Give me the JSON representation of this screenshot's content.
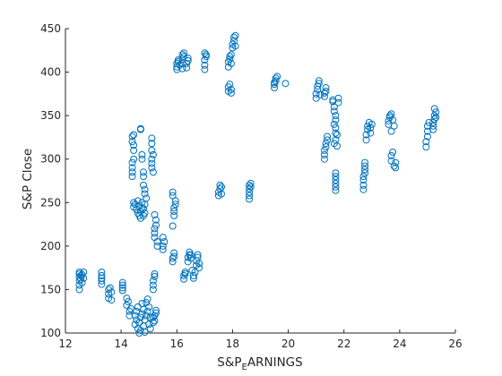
{
  "chart_data": {
    "type": "scatter",
    "title": "",
    "xlabel_main": "S&P",
    "xlabel_sub": "E",
    "xlabel_tail": "ARNINGS",
    "ylabel": "S&P Close",
    "xlim": [
      12,
      26
    ],
    "ylim": [
      100,
      450
    ],
    "xticks": [
      12,
      14,
      16,
      18,
      20,
      22,
      24,
      26
    ],
    "yticks": [
      100,
      150,
      200,
      250,
      300,
      350,
      400,
      450
    ],
    "grid": false,
    "marker": "circle-open",
    "color": "#0072BD",
    "series": [
      {
        "name": "",
        "points": [
          [
            12.5,
            150
          ],
          [
            12.5,
            155
          ],
          [
            12.5,
            160
          ],
          [
            12.5,
            164
          ],
          [
            12.5,
            168
          ],
          [
            12.5,
            170
          ],
          [
            12.55,
            162
          ],
          [
            12.55,
            166
          ],
          [
            12.6,
            158
          ],
          [
            12.6,
            167
          ],
          [
            12.65,
            163
          ],
          [
            12.65,
            170
          ],
          [
            13.3,
            160
          ],
          [
            13.3,
            163
          ],
          [
            13.3,
            166
          ],
          [
            13.3,
            170
          ],
          [
            13.3,
            156
          ],
          [
            13.55,
            140
          ],
          [
            13.55,
            145
          ],
          [
            13.55,
            150
          ],
          [
            13.6,
            152
          ],
          [
            13.65,
            138
          ],
          [
            13.65,
            147
          ],
          [
            14.05,
            152
          ],
          [
            14.05,
            155
          ],
          [
            14.05,
            158
          ],
          [
            14.05,
            149
          ],
          [
            14.2,
            140
          ],
          [
            14.2,
            132
          ],
          [
            14.25,
            136
          ],
          [
            14.3,
            125
          ],
          [
            14.35,
            128
          ],
          [
            14.3,
            120
          ],
          [
            14.5,
            110
          ],
          [
            14.5,
            120
          ],
          [
            14.55,
            115
          ],
          [
            14.55,
            125
          ],
          [
            14.6,
            105
          ],
          [
            14.6,
            130
          ],
          [
            14.65,
            100
          ],
          [
            14.65,
            112
          ],
          [
            14.7,
            103
          ],
          [
            14.7,
            118
          ],
          [
            14.75,
            122
          ],
          [
            14.75,
            134
          ],
          [
            14.8,
            108
          ],
          [
            14.8,
            127
          ],
          [
            14.85,
            101
          ],
          [
            14.85,
            115
          ],
          [
            14.9,
            120
          ],
          [
            14.9,
            135
          ],
          [
            14.95,
            125
          ],
          [
            14.95,
            139
          ],
          [
            15.0,
            110
          ],
          [
            15.0,
            130
          ],
          [
            15.05,
            105
          ],
          [
            15.05,
            118
          ],
          [
            15.15,
            112
          ],
          [
            15.15,
            118
          ],
          [
            15.2,
            114
          ],
          [
            15.2,
            120
          ],
          [
            15.25,
            123
          ],
          [
            15.25,
            126
          ],
          [
            15.15,
            150
          ],
          [
            15.15,
            155
          ],
          [
            15.15,
            160
          ],
          [
            15.2,
            165
          ],
          [
            15.2,
            168
          ],
          [
            14.45,
            245
          ],
          [
            14.45,
            250
          ],
          [
            14.5,
            248
          ],
          [
            14.55,
            242
          ],
          [
            14.6,
            238
          ],
          [
            14.6,
            252
          ],
          [
            14.65,
            235
          ],
          [
            14.65,
            246
          ],
          [
            14.7,
            232
          ],
          [
            14.7,
            240
          ],
          [
            14.75,
            244
          ],
          [
            14.75,
            250
          ],
          [
            14.8,
            235
          ],
          [
            14.8,
            243
          ],
          [
            14.85,
            238
          ],
          [
            14.85,
            248
          ],
          [
            14.4,
            280
          ],
          [
            14.4,
            285
          ],
          [
            14.4,
            290
          ],
          [
            14.4,
            296
          ],
          [
            14.45,
            300
          ],
          [
            14.45,
            310
          ],
          [
            14.45,
            316
          ],
          [
            14.4,
            320
          ],
          [
            14.4,
            326
          ],
          [
            14.45,
            328
          ],
          [
            14.7,
            334
          ],
          [
            14.7,
            335
          ],
          [
            14.75,
            300
          ],
          [
            14.75,
            305
          ],
          [
            14.8,
            280
          ],
          [
            14.8,
            285
          ],
          [
            14.8,
            270
          ],
          [
            14.85,
            265
          ],
          [
            14.85,
            260
          ],
          [
            14.9,
            255
          ],
          [
            15.1,
            290
          ],
          [
            15.1,
            295
          ],
          [
            15.1,
            300
          ],
          [
            15.15,
            305
          ],
          [
            15.1,
            310
          ],
          [
            15.1,
            318
          ],
          [
            15.1,
            324
          ],
          [
            15.15,
            285
          ],
          [
            15.2,
            210
          ],
          [
            15.2,
            215
          ],
          [
            15.2,
            220
          ],
          [
            15.25,
            224
          ],
          [
            15.25,
            230
          ],
          [
            15.2,
            236
          ],
          [
            15.3,
            205
          ],
          [
            15.3,
            200
          ],
          [
            15.5,
            196
          ],
          [
            15.5,
            200
          ],
          [
            15.55,
            205
          ],
          [
            15.5,
            210
          ],
          [
            15.85,
            182
          ],
          [
            15.85,
            186
          ],
          [
            15.9,
            188
          ],
          [
            15.9,
            192
          ],
          [
            15.85,
            223
          ],
          [
            15.9,
            235
          ],
          [
            15.9,
            240
          ],
          [
            15.9,
            244
          ],
          [
            15.95,
            248
          ],
          [
            15.95,
            252
          ],
          [
            15.85,
            258
          ],
          [
            15.85,
            262
          ],
          [
            16.25,
            162
          ],
          [
            16.25,
            166
          ],
          [
            16.3,
            168
          ],
          [
            16.3,
            170
          ],
          [
            16.4,
            182
          ],
          [
            16.4,
            187
          ],
          [
            16.45,
            190
          ],
          [
            16.45,
            193
          ],
          [
            16.5,
            190
          ],
          [
            16.5,
            186
          ],
          [
            16.6,
            163
          ],
          [
            16.6,
            166
          ],
          [
            16.65,
            170
          ],
          [
            16.55,
            172
          ],
          [
            16.7,
            178
          ],
          [
            16.7,
            183
          ],
          [
            16.75,
            187
          ],
          [
            16.75,
            190
          ],
          [
            16.8,
            180
          ],
          [
            16.8,
            175
          ],
          [
            16.0,
            403
          ],
          [
            16.0,
            406
          ],
          [
            16.0,
            410
          ],
          [
            16.05,
            412
          ],
          [
            16.05,
            414
          ],
          [
            16.1,
            408
          ],
          [
            16.2,
            404
          ],
          [
            16.2,
            410
          ],
          [
            16.2,
            415
          ],
          [
            16.2,
            420
          ],
          [
            16.25,
            422
          ],
          [
            16.25,
            418
          ],
          [
            16.35,
            405
          ],
          [
            16.35,
            410
          ],
          [
            16.4,
            413
          ],
          [
            16.4,
            416
          ],
          [
            17.0,
            403
          ],
          [
            17.0,
            408
          ],
          [
            17.0,
            414
          ],
          [
            17.05,
            418
          ],
          [
            17.05,
            420
          ],
          [
            17.0,
            422
          ],
          [
            17.5,
            258
          ],
          [
            17.5,
            262
          ],
          [
            17.55,
            266
          ],
          [
            17.55,
            270
          ],
          [
            17.6,
            268
          ],
          [
            17.6,
            260
          ],
          [
            17.85,
            378
          ],
          [
            17.85,
            383
          ],
          [
            17.9,
            386
          ],
          [
            17.95,
            376
          ],
          [
            17.95,
            380
          ],
          [
            17.85,
            406
          ],
          [
            17.85,
            412
          ],
          [
            17.9,
            415
          ],
          [
            17.9,
            418
          ],
          [
            17.95,
            420
          ],
          [
            17.95,
            410
          ],
          [
            18.0,
            428
          ],
          [
            18.0,
            432
          ],
          [
            18.05,
            436
          ],
          [
            18.05,
            440
          ],
          [
            18.1,
            442
          ],
          [
            18.1,
            430
          ],
          [
            18.6,
            254
          ],
          [
            18.6,
            258
          ],
          [
            18.6,
            262
          ],
          [
            18.6,
            266
          ],
          [
            18.6,
            270
          ],
          [
            18.65,
            272
          ],
          [
            18.65,
            268
          ],
          [
            19.5,
            382
          ],
          [
            19.5,
            386
          ],
          [
            19.55,
            390
          ],
          [
            19.55,
            393
          ],
          [
            19.6,
            395
          ],
          [
            19.5,
            388
          ],
          [
            19.9,
            387
          ],
          [
            21.0,
            370
          ],
          [
            21.0,
            375
          ],
          [
            21.05,
            380
          ],
          [
            21.05,
            384
          ],
          [
            21.1,
            387
          ],
          [
            21.1,
            390
          ],
          [
            21.15,
            374
          ],
          [
            21.3,
            372
          ],
          [
            21.3,
            376
          ],
          [
            21.35,
            378
          ],
          [
            21.35,
            382
          ],
          [
            21.3,
            300
          ],
          [
            21.3,
            305
          ],
          [
            21.3,
            310
          ],
          [
            21.35,
            314
          ],
          [
            21.35,
            318
          ],
          [
            21.4,
            322
          ],
          [
            21.4,
            326
          ],
          [
            21.6,
            366
          ],
          [
            21.6,
            368
          ],
          [
            21.65,
            360
          ],
          [
            21.65,
            355
          ],
          [
            21.7,
            350
          ],
          [
            21.7,
            345
          ],
          [
            21.65,
            340
          ],
          [
            21.7,
            336
          ],
          [
            21.7,
            330
          ],
          [
            21.65,
            318
          ],
          [
            21.7,
            322
          ],
          [
            21.75,
            328
          ],
          [
            21.75,
            315
          ],
          [
            21.8,
            370
          ],
          [
            21.8,
            365
          ],
          [
            21.7,
            264
          ],
          [
            21.7,
            268
          ],
          [
            21.7,
            272
          ],
          [
            21.7,
            276
          ],
          [
            21.7,
            280
          ],
          [
            21.7,
            284
          ],
          [
            22.7,
            265
          ],
          [
            22.7,
            270
          ],
          [
            22.7,
            276
          ],
          [
            22.7,
            280
          ],
          [
            22.75,
            284
          ],
          [
            22.75,
            288
          ],
          [
            22.75,
            292
          ],
          [
            22.75,
            296
          ],
          [
            22.8,
            322
          ],
          [
            22.8,
            328
          ],
          [
            22.85,
            334
          ],
          [
            22.85,
            338
          ],
          [
            22.9,
            342
          ],
          [
            22.95,
            336
          ],
          [
            22.95,
            330
          ],
          [
            23.0,
            340
          ],
          [
            23.6,
            340
          ],
          [
            23.6,
            344
          ],
          [
            23.65,
            348
          ],
          [
            23.65,
            350
          ],
          [
            23.7,
            352
          ],
          [
            23.75,
            345
          ],
          [
            23.8,
            338
          ],
          [
            23.7,
            332
          ],
          [
            23.7,
            298
          ],
          [
            23.7,
            304
          ],
          [
            23.75,
            308
          ],
          [
            23.8,
            292
          ],
          [
            23.85,
            290
          ],
          [
            23.85,
            296
          ],
          [
            24.95,
            314
          ],
          [
            24.95,
            320
          ],
          [
            25.0,
            326
          ],
          [
            25.0,
            332
          ],
          [
            25.0,
            338
          ],
          [
            25.05,
            342
          ],
          [
            25.2,
            334
          ],
          [
            25.2,
            338
          ],
          [
            25.2,
            342
          ],
          [
            25.25,
            346
          ],
          [
            25.25,
            350
          ],
          [
            25.3,
            354
          ],
          [
            25.25,
            358
          ],
          [
            25.3,
            348
          ]
        ]
      }
    ]
  }
}
